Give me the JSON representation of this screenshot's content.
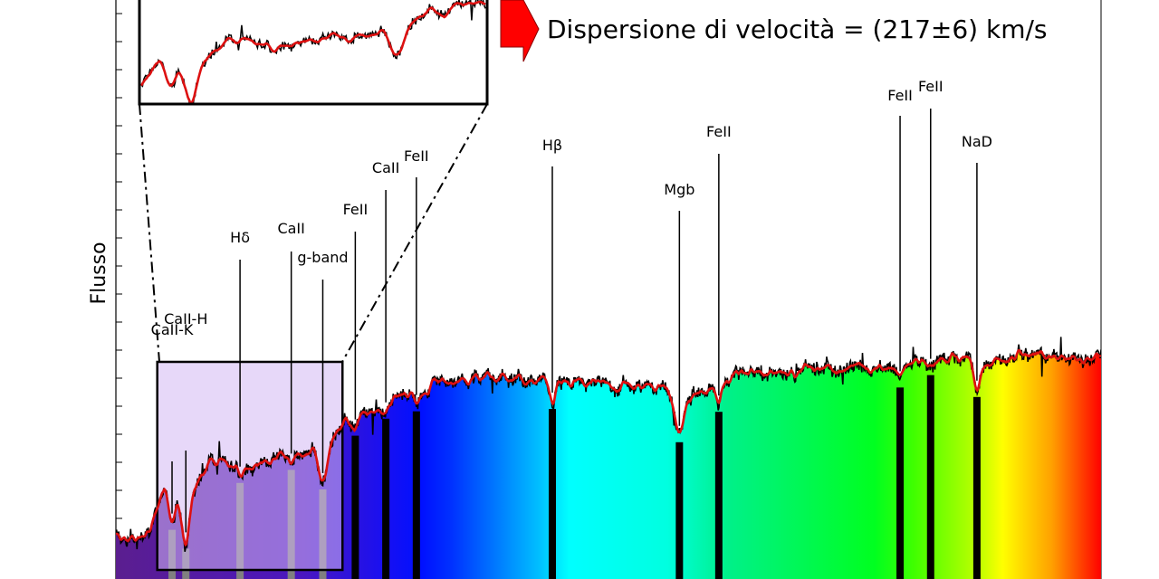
{
  "chart_data": {
    "type": "line",
    "ylabel": "Flusso",
    "xlabel": "",
    "annotation": "Dispersione di velocità = (217±6) km/s",
    "series": [
      {
        "role": "observed",
        "color": "#000000"
      },
      {
        "role": "model",
        "color": "#dd1111"
      }
    ],
    "x_range_norm": [
      0,
      1
    ],
    "y_range_norm": [
      0,
      1
    ],
    "continuum": {
      "x": [
        0.0,
        0.02,
        0.035,
        0.05,
        0.065,
        0.08,
        0.095,
        0.115,
        0.135,
        0.155,
        0.175,
        0.195,
        0.215,
        0.225,
        0.235,
        0.245,
        0.26,
        0.28,
        0.3,
        0.33,
        0.36,
        0.4,
        0.44,
        0.48,
        0.52,
        0.54,
        0.56,
        0.58,
        0.6,
        0.62,
        0.63,
        0.64,
        0.66,
        0.7,
        0.75,
        0.8,
        0.82,
        0.84,
        0.86,
        0.88,
        0.9,
        0.93,
        0.96,
        1.0
      ],
      "y": [
        0.12,
        0.1,
        0.13,
        0.26,
        0.23,
        0.24,
        0.33,
        0.31,
        0.32,
        0.33,
        0.34,
        0.35,
        0.36,
        0.42,
        0.43,
        0.45,
        0.46,
        0.5,
        0.52,
        0.54,
        0.56,
        0.55,
        0.54,
        0.54,
        0.53,
        0.53,
        0.52,
        0.5,
        0.52,
        0.54,
        0.57,
        0.56,
        0.57,
        0.58,
        0.58,
        0.59,
        0.6,
        0.61,
        0.61,
        0.6,
        0.61,
        0.62,
        0.61,
        0.62
      ]
    },
    "absorption_lines": [
      {
        "label": "CaII-K",
        "x": 0.057,
        "depth": 0.09,
        "width": 0.0035
      },
      {
        "label": "CaII-H",
        "x": 0.071,
        "depth": 0.13,
        "width": 0.0035
      },
      {
        "label": "Hδ",
        "x": 0.126,
        "depth": 0.03,
        "width": 0.003
      },
      {
        "label": "CaII",
        "x": 0.178,
        "depth": 0.02,
        "width": 0.003
      },
      {
        "label": "g-band",
        "x": 0.21,
        "depth": 0.09,
        "width": 0.004
      },
      {
        "label": "FeII",
        "x": 0.243,
        "depth": 0.03,
        "width": 0.003
      },
      {
        "label": "CaII",
        "x": 0.274,
        "depth": 0.025,
        "width": 0.003
      },
      {
        "label": "FeII",
        "x": 0.305,
        "depth": 0.04,
        "width": 0.003
      },
      {
        "label": "Hβ",
        "x": 0.443,
        "depth": 0.05,
        "width": 0.003
      },
      {
        "label": "Mgb",
        "x": 0.572,
        "depth": 0.11,
        "width": 0.004
      },
      {
        "label": "FeII",
        "x": 0.612,
        "depth": 0.05,
        "width": 0.003
      },
      {
        "label": "FeII",
        "x": 0.796,
        "depth": 0.04,
        "width": 0.003
      },
      {
        "label": "FeII",
        "x": 0.827,
        "depth": 0.02,
        "width": 0.003
      },
      {
        "label": "NaD",
        "x": 0.874,
        "depth": 0.08,
        "width": 0.0035
      }
    ],
    "noise_amplitude": 0.012,
    "zoom_region": {
      "x_start": 0.042,
      "x_end": 0.23
    },
    "colors": {
      "violet": "#5b1e8f",
      "blue": "#0a14f0",
      "cyan": "#00ffff",
      "green": "#00e000",
      "yellow": "#ffff00",
      "red": "#ff0000",
      "line_marker": "#000000",
      "zoom_highlight": "#c0a0f0",
      "arrow": "#ff0000"
    }
  }
}
